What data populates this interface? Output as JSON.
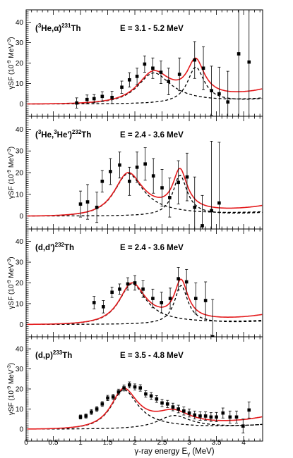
{
  "chart_data": {
    "type": "scatter",
    "x_axis": {
      "label_main": "γ-ray energy E",
      "label_sub": "γ",
      "label_unit": " (MeV)",
      "range": [
        0,
        4.35
      ],
      "major_ticks": [
        0,
        0.5,
        1,
        1.5,
        2,
        2.5,
        3,
        3.5,
        4
      ],
      "major_tick_labels": [
        "0",
        "0.5",
        "1",
        "1.5",
        "2",
        "2.5",
        "3",
        "3.5",
        "4"
      ]
    },
    "y_axis": {
      "label_prefix": "γSF (10",
      "label_exp1": "-9",
      "label_mid": " MeV",
      "label_exp2": "-3",
      "label_suffix": ")",
      "major_ticks": [
        0,
        10,
        20,
        30,
        40
      ],
      "major_tick_labels": [
        "0",
        "10",
        "20",
        "30",
        "40"
      ]
    },
    "colors": {
      "total_fit": "#e41a1c",
      "components": "#000000",
      "data": "#000000"
    },
    "panels": [
      {
        "reaction_prefix": "(",
        "reaction_sup1": "3",
        "reaction_mid": "He,α)",
        "reaction_sup2": "231",
        "reaction_suffix": "Th",
        "energy_range": "E = 3.1 - 5.2 MeV",
        "ylim": [
          -6,
          46
        ],
        "resonances": [
          [
            2.35,
            15,
            0.75
          ],
          [
            3.12,
            17.5,
            0.38
          ]
        ],
        "bg_amp": 1.2,
        "bg_x0": 3.0,
        "points": [
          [
            0.93,
            0.5,
            2.5
          ],
          [
            1.12,
            2.2,
            2.2
          ],
          [
            1.25,
            2.6,
            2.0
          ],
          [
            1.4,
            3.7,
            2.3
          ],
          [
            1.58,
            3.2,
            3.0
          ],
          [
            1.76,
            8.2,
            3.0
          ],
          [
            1.9,
            11.8,
            3.5
          ],
          [
            2.04,
            13.5,
            4.0
          ],
          [
            2.18,
            19.5,
            4.0
          ],
          [
            2.33,
            17.5,
            5.0
          ],
          [
            2.48,
            15.5,
            5.5
          ],
          [
            2.62,
            11.0,
            6.5
          ],
          [
            2.82,
            14.5,
            8.0
          ],
          [
            3.1,
            21.5,
            9.0
          ],
          [
            3.26,
            17.5,
            10.5
          ],
          [
            3.41,
            6.5,
            12.0
          ],
          [
            3.55,
            5.0,
            13.0
          ],
          [
            3.71,
            1.0,
            15.0
          ],
          [
            3.91,
            24.5,
            40.0
          ],
          [
            4.1,
            20.5,
            40.0
          ]
        ]
      },
      {
        "reaction_prefix": "(",
        "reaction_sup1": "3",
        "reaction_mid": "He,",
        "reaction_sup2": "3",
        "reaction_mid2": "He')",
        "reaction_sup3": "232",
        "reaction_suffix": "Th",
        "energy_range": "E = 2.4 - 3.6 MeV",
        "ylim": [
          -6,
          46
        ],
        "resonances": [
          [
            1.88,
            19.5,
            0.65
          ],
          [
            2.83,
            18.5,
            0.32
          ]
        ],
        "bg_amp": 1.0,
        "bg_x0": 3.2,
        "points": [
          [
            1.0,
            5.5,
            6.0
          ],
          [
            1.13,
            6.5,
            8.0
          ],
          [
            1.3,
            4.0,
            7.0
          ],
          [
            1.4,
            16.0,
            5.0
          ],
          [
            1.55,
            20.5,
            6.0
          ],
          [
            1.72,
            23.5,
            6.0
          ],
          [
            1.9,
            16.0,
            6.5
          ],
          [
            2.04,
            22.5,
            7.0
          ],
          [
            2.19,
            24.0,
            7.5
          ],
          [
            2.34,
            18.5,
            8.0
          ],
          [
            2.5,
            13.0,
            8.5
          ],
          [
            2.64,
            8.5,
            9.0
          ],
          [
            2.8,
            15.5,
            10.0
          ],
          [
            2.96,
            18.0,
            11.0
          ],
          [
            3.1,
            4.0,
            14.0
          ],
          [
            3.24,
            -4.5,
            14.0
          ],
          [
            3.41,
            2.5,
            32.0
          ],
          [
            3.55,
            6.0,
            28.0
          ]
        ]
      },
      {
        "reaction_prefix": "(d,d')",
        "reaction_sup1": "232",
        "reaction_suffix": "Th",
        "energy_range": "E = 2.4 - 3.6 MeV",
        "ylim": [
          -6,
          46
        ],
        "resonances": [
          [
            1.95,
            19.5,
            0.6
          ],
          [
            2.85,
            18.5,
            0.3
          ]
        ],
        "bg_amp": 1.0,
        "bg_x0": 3.2,
        "points": [
          [
            1.25,
            10.5,
            3.0
          ],
          [
            1.42,
            8.5,
            3.0
          ],
          [
            1.58,
            15.5,
            2.5
          ],
          [
            1.72,
            17.0,
            2.5
          ],
          [
            1.87,
            19.5,
            3.0
          ],
          [
            2.0,
            20.0,
            3.5
          ],
          [
            2.15,
            17.0,
            4.0
          ],
          [
            2.33,
            12.5,
            4.5
          ],
          [
            2.49,
            10.5,
            5.0
          ],
          [
            2.65,
            12.5,
            5.0
          ],
          [
            2.8,
            22.0,
            5.5
          ],
          [
            2.95,
            20.5,
            6.0
          ],
          [
            3.12,
            12.5,
            7.5
          ],
          [
            3.3,
            11.5,
            9.0
          ],
          [
            3.43,
            -6.0,
            18.0
          ]
        ]
      },
      {
        "reaction_prefix": "(d,p)",
        "reaction_sup1": "233",
        "reaction_suffix": "Th",
        "energy_range": "E = 3.5 - 4.8 MeV",
        "ylim": [
          -6,
          46
        ],
        "resonances": [
          [
            1.8,
            19.5,
            0.6
          ],
          [
            2.72,
            6.5,
            0.75
          ]
        ],
        "bg_amp": 1.3,
        "bg_x0": 3.2,
        "points": [
          [
            1.0,
            6.0,
            1.0
          ],
          [
            1.1,
            6.5,
            1.0
          ],
          [
            1.2,
            8.5,
            1.2
          ],
          [
            1.3,
            10.0,
            1.2
          ],
          [
            1.4,
            12.5,
            1.2
          ],
          [
            1.5,
            15.5,
            1.3
          ],
          [
            1.6,
            16.0,
            1.3
          ],
          [
            1.7,
            18.5,
            1.4
          ],
          [
            1.8,
            20.5,
            1.5
          ],
          [
            1.9,
            22.0,
            1.5
          ],
          [
            2.0,
            21.0,
            1.5
          ],
          [
            2.1,
            20.5,
            1.6
          ],
          [
            2.2,
            17.5,
            1.6
          ],
          [
            2.3,
            16.5,
            1.7
          ],
          [
            2.4,
            15.0,
            1.7
          ],
          [
            2.5,
            13.0,
            1.8
          ],
          [
            2.6,
            12.5,
            1.8
          ],
          [
            2.7,
            11.0,
            1.9
          ],
          [
            2.8,
            10.0,
            1.9
          ],
          [
            2.9,
            9.0,
            2.0
          ],
          [
            3.0,
            8.0,
            2.0
          ],
          [
            3.1,
            7.0,
            2.0
          ],
          [
            3.2,
            6.5,
            2.1
          ],
          [
            3.3,
            6.5,
            2.1
          ],
          [
            3.4,
            6.0,
            2.2
          ],
          [
            3.5,
            6.0,
            2.3
          ],
          [
            3.62,
            8.0,
            2.5
          ],
          [
            3.75,
            6.0,
            3.0
          ],
          [
            3.87,
            6.0,
            3.0
          ],
          [
            3.99,
            1.5,
            3.5
          ],
          [
            4.1,
            9.5,
            4.0
          ]
        ]
      }
    ]
  }
}
